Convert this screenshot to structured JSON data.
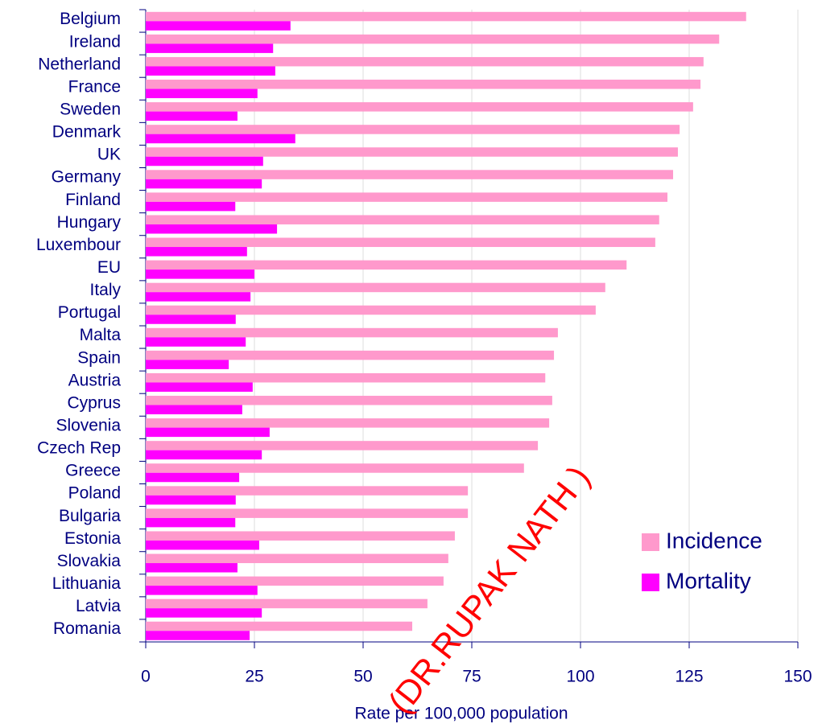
{
  "chart_data": {
    "type": "bar",
    "orientation": "horizontal",
    "categories": [
      "Belgium",
      "Ireland",
      "Netherland",
      "France",
      "Sweden",
      "Denmark",
      "UK",
      "Germany",
      "Finland",
      "Hungary",
      "Luxembour",
      "EU",
      "Italy",
      "Portugal",
      "Malta",
      "Spain",
      "Austria",
      "Cyprus",
      "Slovenia",
      "Czech Rep",
      "Greece",
      "Poland",
      "Bulgaria",
      "Estonia",
      "Slovakia",
      "Lithuania",
      "Latvia",
      "Romania"
    ],
    "series": [
      {
        "name": "Incidence",
        "color": "#ff99cc",
        "values": [
          138.1,
          131.9,
          128.3,
          127.6,
          125.9,
          122.8,
          122.4,
          121.3,
          120,
          118.1,
          117.2,
          110.6,
          105.7,
          103.5,
          94.8,
          93.9,
          91.9,
          93.5,
          92.8,
          90.2,
          87,
          74.1,
          74.1,
          71.1,
          69.6,
          68.5,
          64.8,
          61.3
        ]
      },
      {
        "name": "Mortality",
        "color": "#ff00ff",
        "values": [
          33.3,
          29.3,
          29.8,
          25.7,
          21.1,
          34.4,
          27,
          26.7,
          20.6,
          30.2,
          23.3,
          25,
          24.1,
          20.7,
          23,
          19.1,
          24.6,
          22.2,
          28.5,
          26.7,
          21.5,
          20.7,
          20.6,
          26.1,
          21.1,
          25.7,
          26.7,
          23.9
        ]
      }
    ],
    "xlim": [
      0,
      150
    ],
    "xticks": [
      0,
      25,
      50,
      75,
      100,
      125,
      150
    ],
    "x_label": "Rate per 100,000 population",
    "grid": true,
    "legend": "lower right",
    "watermark": "(DR.RUPAK NATH )"
  }
}
